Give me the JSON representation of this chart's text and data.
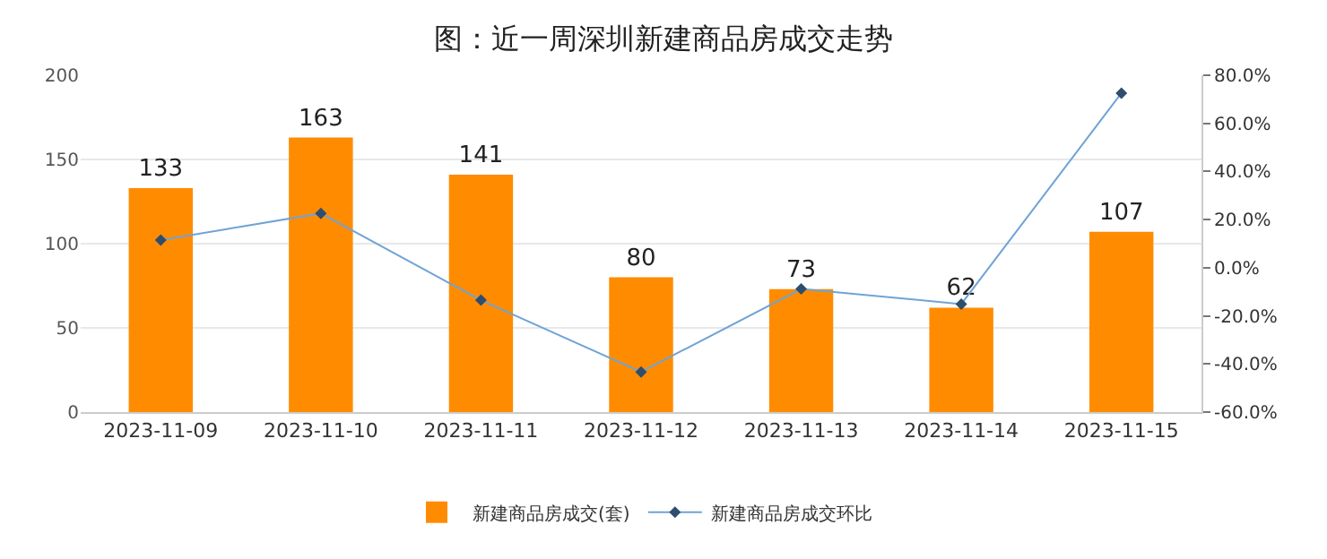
{
  "chart_data": {
    "type": "bar",
    "title": "图：近一周深圳新建商品房成交走势",
    "categories": [
      "2023-11-09",
      "2023-11-10",
      "2023-11-11",
      "2023-11-12",
      "2023-11-13",
      "2023-11-14",
      "2023-11-15"
    ],
    "series": [
      {
        "name": "新建商品房成交(套)",
        "color": "#ff8c00",
        "values": [
          133,
          163,
          141,
          80,
          73,
          62,
          107
        ],
        "data_labels": true
      },
      {
        "name": "新建商品房成交环比",
        "type": "line",
        "axis": "y2",
        "color": "#6fa3d6",
        "marker": "diamond",
        "values": [
          11.5,
          22.6,
          -13.5,
          -43.3,
          -8.8,
          -15.1,
          72.6
        ]
      }
    ],
    "ylim": [
      0,
      200
    ],
    "yticks": [
      0,
      50,
      100,
      150,
      200
    ],
    "y2lim": [
      -60,
      80
    ],
    "y2ticks": [
      {
        "value": -60,
        "label": "-60.0%"
      },
      {
        "value": -40,
        "label": "-40.0%"
      },
      {
        "value": -20,
        "label": "-20.0%"
      },
      {
        "value": 0,
        "label": "0.0%"
      },
      {
        "value": 20,
        "label": "20.0%"
      },
      {
        "value": 40,
        "label": "40.0%"
      },
      {
        "value": 60,
        "label": "60.0%"
      },
      {
        "value": 80,
        "label": "80.0%"
      }
    ],
    "grid": "y",
    "legend": "bottom"
  }
}
